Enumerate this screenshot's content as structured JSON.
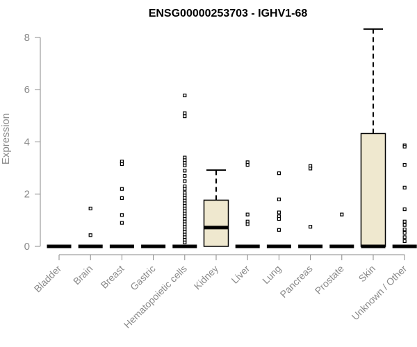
{
  "chart_data": {
    "type": "boxplot",
    "title": "ENSG00000253703 - IGHV1-68",
    "xlabel": "",
    "ylabel": "Expression",
    "ylim": [
      0,
      8.5
    ],
    "yticks": [
      0,
      2,
      4,
      6,
      8
    ],
    "grid": false,
    "legend": "none",
    "box_fill": "#efe8cf",
    "categories": [
      "Bladder",
      "Brain",
      "Breast",
      "Gastric",
      "Hematopoietic cells",
      "Kidney",
      "Liver",
      "Lung",
      "Pancreas",
      "Prostate",
      "Skin",
      "Unknown / Other"
    ],
    "boxes": [
      {
        "q1": 0,
        "median": 0,
        "q3": 0,
        "whisker_low": 0,
        "whisker_high": 0,
        "outliers": []
      },
      {
        "q1": 0,
        "median": 0,
        "q3": 0,
        "whisker_low": 0,
        "whisker_high": 0,
        "outliers": [
          1.45,
          0.43
        ]
      },
      {
        "q1": 0,
        "median": 0,
        "q3": 0,
        "whisker_low": 0,
        "whisker_high": 0,
        "outliers": [
          3.25,
          3.15,
          2.2,
          1.85,
          1.2,
          0.9
        ]
      },
      {
        "q1": 0,
        "median": 0,
        "q3": 0,
        "whisker_low": 0,
        "whisker_high": 0,
        "outliers": []
      },
      {
        "q1": 0,
        "median": 0,
        "q3": 0,
        "whisker_low": 0,
        "whisker_high": 0,
        "outliers": [
          5.78,
          5.1,
          4.98,
          3.4,
          3.3,
          3.2,
          3.1,
          2.9,
          2.7,
          2.5,
          2.3,
          2.2,
          2.05,
          1.95,
          1.85,
          1.75,
          1.65,
          1.55,
          1.45,
          1.35,
          1.25,
          1.15,
          1.05,
          0.95,
          0.85,
          0.75,
          0.65,
          0.55,
          0.45,
          0.35,
          0.25,
          0.15
        ]
      },
      {
        "q1": 0,
        "median": 0.72,
        "q3": 1.77,
        "whisker_low": 0,
        "whisker_high": 2.92,
        "outliers": []
      },
      {
        "q1": 0,
        "median": 0,
        "q3": 0,
        "whisker_low": 0,
        "whisker_high": 0,
        "outliers": [
          3.22,
          3.12,
          1.22,
          0.95,
          0.85
        ]
      },
      {
        "q1": 0,
        "median": 0,
        "q3": 0,
        "whisker_low": 0,
        "whisker_high": 0,
        "outliers": [
          2.8,
          1.8,
          1.3,
          1.15,
          1.05,
          0.63
        ]
      },
      {
        "q1": 0,
        "median": 0,
        "q3": 0,
        "whisker_low": 0,
        "whisker_high": 0,
        "outliers": [
          3.08,
          2.98,
          0.75
        ]
      },
      {
        "q1": 0,
        "median": 0,
        "q3": 0,
        "whisker_low": 0,
        "whisker_high": 0,
        "outliers": [
          1.22
        ]
      },
      {
        "q1": 0,
        "median": 0,
        "q3": 4.32,
        "whisker_low": 0,
        "whisker_high": 8.32,
        "outliers": []
      },
      {
        "q1": 0,
        "median": 0,
        "q3": 0,
        "whisker_low": 0,
        "whisker_high": 0,
        "outliers": [
          3.87,
          3.82,
          3.12,
          2.25,
          1.42,
          0.95,
          0.82,
          0.65,
          0.52,
          0.35,
          0.2
        ]
      }
    ]
  }
}
